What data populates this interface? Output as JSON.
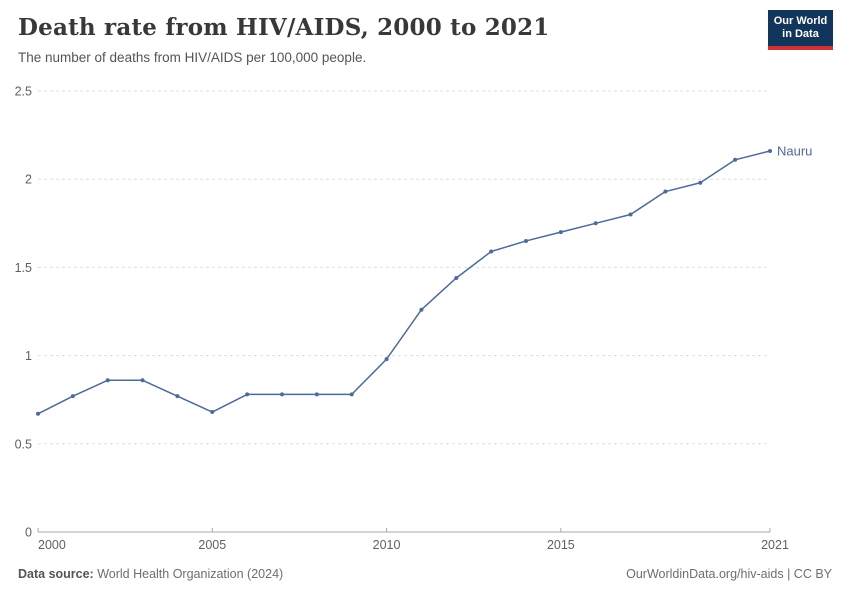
{
  "header": {
    "title": "Death rate from HIV/AIDS, 2000 to 2021",
    "subtitle": "The number of deaths from HIV/AIDS per 100,000 people.",
    "logo": {
      "line1": "Our World",
      "line2": "in Data",
      "bg_color": "#12355b",
      "accent_color": "#cf3337"
    }
  },
  "chart_data": {
    "type": "line",
    "title": "Death rate from HIV/AIDS, 2000 to 2021",
    "subtitle": "The number of deaths from HIV/AIDS per 100,000 people.",
    "xlabel": "",
    "ylabel": "",
    "x": [
      2000,
      2001,
      2002,
      2003,
      2004,
      2005,
      2006,
      2007,
      2008,
      2009,
      2010,
      2011,
      2012,
      2013,
      2014,
      2015,
      2016,
      2017,
      2018,
      2019,
      2020,
      2021
    ],
    "series": [
      {
        "name": "Nauru",
        "color": "#4c6a9c",
        "values": [
          0.67,
          0.77,
          0.86,
          0.86,
          0.77,
          0.68,
          0.78,
          0.78,
          0.78,
          0.78,
          0.98,
          1.26,
          1.44,
          1.59,
          1.65,
          1.7,
          1.75,
          1.8,
          1.93,
          1.98,
          2.11,
          2.16
        ]
      }
    ],
    "xlim": [
      2000,
      2021
    ],
    "ylim": [
      0,
      2.5
    ],
    "yticks": [
      0,
      0.5,
      1,
      1.5,
      2,
      2.5
    ],
    "ytick_labels": [
      "0",
      "0.5",
      "1",
      "1.5",
      "2",
      "2.5"
    ],
    "xticks": [
      2000,
      2005,
      2010,
      2015,
      2021
    ],
    "grid": "horizontal-dashed",
    "legend_position": "end-of-line-label",
    "marker": "dot"
  },
  "footer": {
    "datasource_label": "Data source:",
    "datasource_value": " World Health Organization (2024)",
    "right_text": "OurWorldinData.org/hiv-aids | CC BY"
  },
  "colors": {
    "line": "#4c6a9c",
    "gridline": "#dddddd",
    "axis": "#a8a8a8",
    "tick_text": "#606060",
    "title_text": "#383838"
  }
}
